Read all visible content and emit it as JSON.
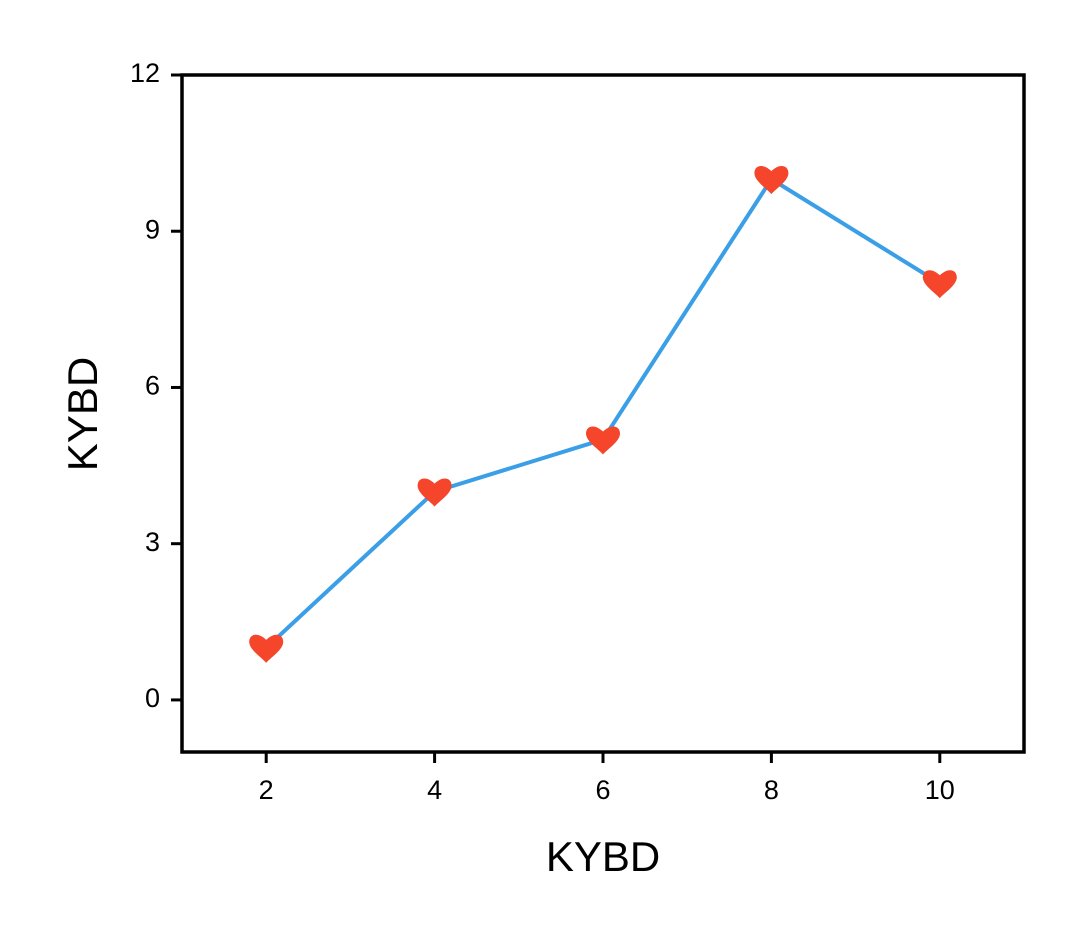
{
  "chart_data": {
    "type": "line",
    "x_label": "KYBD",
    "y_label": "KYBD",
    "x": [
      2,
      4,
      6,
      8,
      10
    ],
    "series": [
      {
        "name": "KYBD",
        "color": "#3a9fe6",
        "marker_color": "#f5452b",
        "marker": "heart",
        "values": [
          1,
          4,
          5,
          10,
          8
        ]
      }
    ],
    "xlim": [
      1,
      11
    ],
    "ylim": [
      -1,
      12
    ],
    "xticks": [
      2,
      4,
      6,
      8,
      10
    ],
    "yticks": [
      0,
      3,
      6,
      9,
      12
    ],
    "grid": false
  }
}
